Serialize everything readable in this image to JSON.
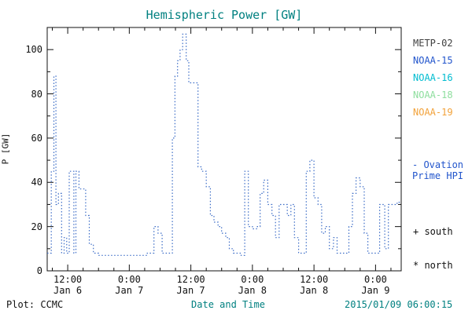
{
  "title": "Hemispheric Power [GW]",
  "ylabel": "P [GW]",
  "legend": {
    "satellites": [
      {
        "label": "METP-02",
        "color": "#404040"
      },
      {
        "label": "NOAA-15",
        "color": "#2255cc"
      },
      {
        "label": "NOAA-16",
        "color": "#00bcd0"
      },
      {
        "label": "NOAA-18",
        "color": "#8ede9e"
      },
      {
        "label": "NOAA-19",
        "color": "#f2a23a"
      }
    ],
    "ovation_line1": "- Ovation",
    "ovation_line2": "Prime HPI",
    "south_label": "+ south",
    "north_label": "* north"
  },
  "footer": {
    "plot_credit": "Plot: CCMC",
    "xlabel": "Date and Time",
    "timestamp": "2015/01/09 06:00:15"
  },
  "chart_data": {
    "type": "line",
    "subtype": "dotted-step",
    "title": "Hemispheric Power [GW]",
    "xlabel": "Date and Time",
    "ylabel": "P [GW]",
    "ylim": [
      0,
      110
    ],
    "yticks": [
      0,
      20,
      40,
      60,
      80,
      100
    ],
    "x_hours_range": [
      8,
      77
    ],
    "xticks": [
      {
        "hour": 12,
        "line1": "12:00",
        "line2": "Jan 6"
      },
      {
        "hour": 24,
        "line1": "0:00",
        "line2": "Jan 7"
      },
      {
        "hour": 36,
        "line1": "12:00",
        "line2": "Jan 7"
      },
      {
        "hour": 48,
        "line1": "0:00",
        "line2": "Jan 8"
      },
      {
        "hour": 60,
        "line1": "12:00",
        "line2": "Jan 8"
      },
      {
        "hour": 72,
        "line1": "0:00",
        "line2": "Jan 9"
      }
    ],
    "grid": false,
    "legend_position": "right",
    "series": [
      {
        "name": "Ovation Prime HPI",
        "color": "#3a6bc6",
        "step_points": [
          [
            8.0,
            8
          ],
          [
            8.8,
            45
          ],
          [
            9.3,
            88
          ],
          [
            9.7,
            30
          ],
          [
            10.2,
            35
          ],
          [
            10.8,
            8
          ],
          [
            11.3,
            15
          ],
          [
            11.8,
            8
          ],
          [
            12.3,
            45
          ],
          [
            13.2,
            8
          ],
          [
            13.6,
            45
          ],
          [
            14.2,
            37
          ],
          [
            15.0,
            37
          ],
          [
            15.5,
            25
          ],
          [
            16.2,
            12
          ],
          [
            17.0,
            8
          ],
          [
            18.0,
            7
          ],
          [
            24.5,
            7
          ],
          [
            27.5,
            8
          ],
          [
            28.8,
            20
          ],
          [
            29.6,
            17
          ],
          [
            30.4,
            8
          ],
          [
            31.6,
            8
          ],
          [
            32.4,
            60
          ],
          [
            32.9,
            88
          ],
          [
            33.4,
            95
          ],
          [
            33.9,
            100
          ],
          [
            34.4,
            107
          ],
          [
            35.1,
            95
          ],
          [
            35.6,
            85
          ],
          [
            36.6,
            85
          ],
          [
            37.4,
            47
          ],
          [
            38.1,
            45
          ],
          [
            39.0,
            38
          ],
          [
            39.8,
            25
          ],
          [
            40.5,
            22
          ],
          [
            41.3,
            20
          ],
          [
            42.0,
            17
          ],
          [
            42.8,
            15
          ],
          [
            43.5,
            10
          ],
          [
            44.3,
            8
          ],
          [
            45.1,
            8
          ],
          [
            45.8,
            7
          ],
          [
            46.5,
            45
          ],
          [
            47.2,
            20
          ],
          [
            48.0,
            19
          ],
          [
            48.8,
            20
          ],
          [
            49.5,
            35
          ],
          [
            50.2,
            41
          ],
          [
            51.0,
            30
          ],
          [
            51.8,
            25
          ],
          [
            52.5,
            15
          ],
          [
            53.2,
            30
          ],
          [
            54.0,
            30
          ],
          [
            54.8,
            25
          ],
          [
            55.5,
            30
          ],
          [
            56.2,
            15
          ],
          [
            57.0,
            8
          ],
          [
            57.8,
            8
          ],
          [
            58.5,
            45
          ],
          [
            59.2,
            50
          ],
          [
            60.0,
            33
          ],
          [
            60.8,
            30
          ],
          [
            61.5,
            17
          ],
          [
            62.2,
            20
          ],
          [
            63.0,
            10
          ],
          [
            63.8,
            15
          ],
          [
            64.5,
            8
          ],
          [
            65.3,
            8
          ],
          [
            66.0,
            8
          ],
          [
            66.8,
            20
          ],
          [
            67.5,
            35
          ],
          [
            68.2,
            42
          ],
          [
            69.0,
            38
          ],
          [
            69.8,
            17
          ],
          [
            70.5,
            8
          ],
          [
            71.3,
            8
          ],
          [
            72.0,
            8
          ],
          [
            72.8,
            30
          ],
          [
            73.8,
            10
          ],
          [
            74.5,
            30
          ],
          [
            76.2,
            31
          ]
        ]
      }
    ]
  }
}
